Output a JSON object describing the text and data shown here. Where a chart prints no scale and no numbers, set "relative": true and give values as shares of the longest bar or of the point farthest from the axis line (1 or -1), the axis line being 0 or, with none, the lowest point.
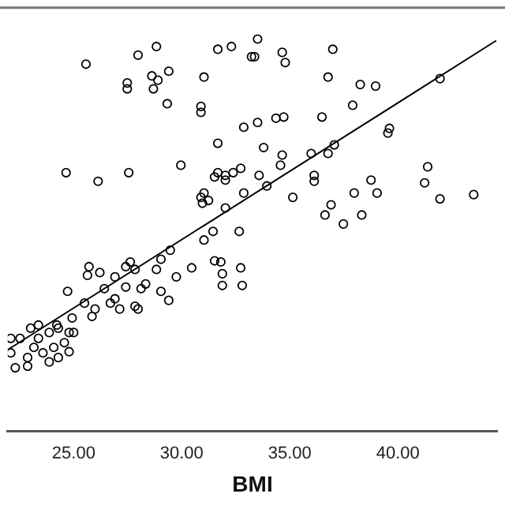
{
  "chart_data": {
    "type": "scatter",
    "xlabel": "BMI",
    "relative": true,
    "xlim": [
      21.95,
      44.6
    ],
    "xticks": [
      {
        "value": 25,
        "label": "25.00"
      },
      {
        "value": 30,
        "label": "30.00"
      },
      {
        "value": 35,
        "label": "35.00"
      },
      {
        "value": 40,
        "label": "40.00"
      }
    ],
    "grid": false,
    "legend": false,
    "series": [
      {
        "marker": "circle",
        "color": "#000000",
        "x": [
          25.57,
          27.98,
          28.83,
          31.67,
          32.3,
          33.23,
          27.48,
          27.48,
          28.62,
          28.9,
          29.4,
          28.69,
          29.33,
          31.03,
          30.89,
          30.89,
          32.87,
          31.67,
          24.65,
          26.13,
          27.55,
          29.96,
          31.67,
          31.52,
          32.02,
          32.38,
          32.73,
          32.02,
          31.03,
          30.89,
          31.24,
          30.96,
          32.87,
          32.02,
          31.45,
          32.66,
          33.51,
          33.37,
          34.65,
          34.79,
          36.99,
          36.77,
          38.26,
          38.97,
          37.91,
          33.51,
          34.36,
          34.72,
          36.49,
          39.61,
          39.54,
          41.95,
          33.79,
          34.65,
          34.57,
          35.99,
          36.77,
          37.06,
          33.58,
          36.13,
          36.13,
          33.94,
          35.14,
          38.76,
          37.98,
          39.04,
          41.38,
          41.24,
          41.95,
          43.51,
          36.91,
          36.63,
          38.33,
          37.48,
          31.03,
          29.47,
          29.04,
          25.71,
          27.62,
          26.21,
          25.64,
          26.91,
          27.84,
          28.83,
          29.75,
          30.46,
          31.52,
          31.81,
          32.73,
          31.88,
          31.88,
          32.8,
          24.72,
          26.42,
          27.41,
          28.33,
          29.04,
          25.5,
          25.99,
          26.7,
          27.13,
          27.84,
          27.98,
          29.4,
          25.85,
          24.93,
          26.91,
          28.12,
          23.01,
          23.37,
          23.87,
          24.29,
          24.79,
          24.57,
          24.08,
          23.58,
          23.16,
          22.87,
          22.3,
          22.87,
          23.87,
          24.29,
          24.79,
          25.0,
          22.09,
          22.09,
          22.52,
          23.37,
          24.22,
          27.41
        ],
        "values": [
          0.936,
          0.959,
          0.981,
          0.974,
          0.981,
          0.955,
          0.888,
          0.873,
          0.906,
          0.895,
          0.918,
          0.873,
          0.835,
          0.903,
          0.828,
          0.813,
          0.775,
          0.734,
          0.659,
          0.637,
          0.659,
          0.678,
          0.659,
          0.648,
          0.652,
          0.659,
          0.67,
          0.64,
          0.607,
          0.596,
          0.588,
          0.581,
          0.607,
          0.569,
          0.509,
          0.509,
          1.0,
          0.955,
          0.966,
          0.94,
          0.974,
          0.903,
          0.884,
          0.88,
          0.831,
          0.787,
          0.798,
          0.801,
          0.801,
          0.772,
          0.76,
          0.899,
          0.723,
          0.704,
          0.678,
          0.708,
          0.708,
          0.73,
          0.652,
          0.652,
          0.637,
          0.625,
          0.596,
          0.64,
          0.607,
          0.607,
          0.674,
          0.633,
          0.592,
          0.603,
          0.577,
          0.551,
          0.551,
          0.528,
          0.487,
          0.461,
          0.438,
          0.419,
          0.431,
          0.404,
          0.397,
          0.393,
          0.412,
          0.412,
          0.393,
          0.416,
          0.434,
          0.431,
          0.416,
          0.401,
          0.371,
          0.371,
          0.356,
          0.363,
          0.367,
          0.375,
          0.356,
          0.326,
          0.311,
          0.326,
          0.311,
          0.318,
          0.311,
          0.333,
          0.292,
          0.288,
          0.337,
          0.363,
          0.262,
          0.236,
          0.251,
          0.262,
          0.251,
          0.225,
          0.213,
          0.199,
          0.213,
          0.187,
          0.161,
          0.165,
          0.176,
          0.187,
          0.202,
          0.251,
          0.236,
          0.199,
          0.236,
          0.27,
          0.27,
          0.419
        ]
      },
      {
        "type": "line",
        "color": "#000000",
        "x": [
          21.95,
          44.55
        ],
        "values": [
          0.207,
          0.996
        ]
      }
    ]
  }
}
